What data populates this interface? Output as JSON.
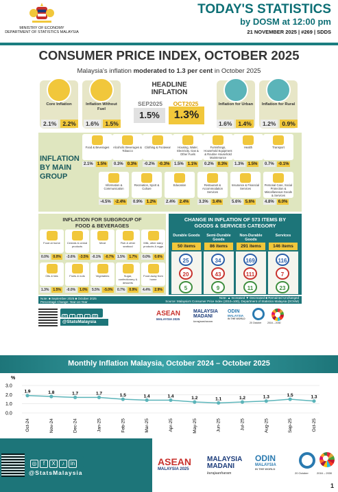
{
  "header": {
    "org_line1": "MINISTRY OF ECONOMY",
    "org_line2": "DEPARTMENT OF STATISTICS MALAYSIA",
    "title": "TODAY'S STATISTICS",
    "subtitle": "by DOSM at 12:00 pm",
    "meta": "21 NOVEMBER 2025 | #269 | SDDS"
  },
  "main_title": "CONSUMER PRICE INDEX, OCTOBER 2025",
  "subtitle_pre": "Malaysia's inflation ",
  "subtitle_mid": "moderated to 1.3 per cent",
  "subtitle_post": " in October 2025",
  "indicators": [
    {
      "label": "Core Inflation",
      "sep": "2.1%",
      "oct": "2.2%"
    },
    {
      "label": "Inflation Without Fuel",
      "sep": "1.6%",
      "oct": "1.5%"
    },
    {
      "label": "Inflation for Urban",
      "sep": "1.6%",
      "oct": "1.4%"
    },
    {
      "label": "Inflation for Rural",
      "sep": "1.2%",
      "oct": "0.9%"
    }
  ],
  "headline": {
    "title1": "HEADLINE",
    "title2": "INFLATION",
    "sep_label": "SEP2025",
    "oct_label": "OCT2025",
    "sep": "1.5%",
    "oct": "1.3%"
  },
  "groups_label1": "INFLATION",
  "groups_label2": "BY MAIN",
  "groups_label3": "GROUP",
  "groups": [
    {
      "name": "Food & Beverages",
      "sep": "2.1%",
      "oct": "1.5%"
    },
    {
      "name": "Alcoholic Beverages & Tobacco",
      "sep": "0.3%",
      "oct": "0.3%"
    },
    {
      "name": "Clothing & Footwear",
      "sep": "-0.2%",
      "oct": "-0.3%"
    },
    {
      "name": "Housing, Water, Electricity, Gas & Other Fuels",
      "sep": "1.5%",
      "oct": "1.1%"
    },
    {
      "name": "Furnishings, Household Equipment & Routine Household Maintenance",
      "sep": "0.2%",
      "oct": "0.3%"
    },
    {
      "name": "Health",
      "sep": "1.3%",
      "oct": "1.5%"
    },
    {
      "name": "Transport",
      "sep": "0.7%",
      "oct": "-0.1%"
    },
    {
      "name": "Information & Communication",
      "sep": "-4.5%",
      "oct": "-2.4%"
    },
    {
      "name": "Recreation, Sport & Culture",
      "sep": "0.9%",
      "oct": "1.2%"
    },
    {
      "name": "Education",
      "sep": "2.4%",
      "oct": "2.4%"
    },
    {
      "name": "Restaurant & Accommodation Services",
      "sep": "3.3%",
      "oct": "3.4%"
    },
    {
      "name": "Insurance & Financial Services",
      "sep": "5.6%",
      "oct": "5.6%"
    },
    {
      "name": "Personal Care, Social Protection & Miscellaneous Goods & Services",
      "sep": "4.8%",
      "oct": "6.0%"
    }
  ],
  "fb": {
    "title1": "INFLATION FOR SUBGROUP OF",
    "title2": "FOOD & BEVERAGES",
    "items": [
      {
        "name": "Food at home",
        "sep": "0.0%",
        "oct": "0.0%"
      },
      {
        "name": "Cereals & cereal products",
        "sep": "-3.6%",
        "oct": "-3.5%"
      },
      {
        "name": "Meat",
        "sep": "-0.1%",
        "oct": "-0.7%"
      },
      {
        "name": "Fish & other seafood",
        "sep": "1.5%",
        "oct": "1.7%"
      },
      {
        "name": "Milk, other dairy products & eggs",
        "sep": "0.0%",
        "oct": "0.6%"
      },
      {
        "name": "Oils & fats",
        "sep": "1.3%",
        "oct": "1.5%"
      },
      {
        "name": "Fruits & nuts",
        "sep": "-0.0%",
        "oct": "1.0%"
      },
      {
        "name": "Vegetables",
        "sep": "5.5%",
        "oct": "-5.0%"
      },
      {
        "name": "Sugar, confectionery & desserts",
        "sep": "0.7%",
        "oct": "0.9%"
      },
      {
        "name": "Food away from home",
        "sep": "4.4%",
        "oct": "2.9%"
      }
    ]
  },
  "change": {
    "title1": "CHANGE IN INFLATION OF 573 ITEMS BY",
    "title2": "GOODS & SERVICES CATEGORY",
    "cols": [
      {
        "head": "Durable Goods",
        "n": "50 items",
        "inc": "25",
        "dec": "20",
        "unc": "5"
      },
      {
        "head": "Semi-Durable Goods",
        "n": "86 items",
        "inc": "34",
        "dec": "43",
        "unc": "9"
      },
      {
        "head": "Non-Durable Goods",
        "n": "291 items",
        "inc": "169",
        "dec": "111",
        "unc": "11"
      },
      {
        "head": "Services",
        "n": "146 items",
        "inc": "116",
        "dec": "7",
        "unc": "23"
      }
    ]
  },
  "notes": {
    "line1": "Note: ■ September 2025  ■ October 2025",
    "line2": "Percentage Change: Year-on-Year",
    "legend": "Note: ▲ Increased  ▼ Decreased  ■ Remained Unchanged",
    "source": "Source: Malaysia's Consumer Price Index (2010=100), Department of Statistics Malaysia (DOSM)"
  },
  "social": {
    "handle": "@StatsMalaysia",
    "handle2": "@StatsMalaysia",
    "icons": [
      "◎",
      "f",
      "X",
      "♪",
      "in"
    ]
  },
  "logos": {
    "asean": "ASEAN",
    "asean_sub": "MALAYSIA 2025",
    "mm1": "MALAYSIA",
    "mm2": "MADANI",
    "mm3": "kerajaanharam",
    "odin": "ODIN",
    "odin_sub": "MALAYSIA",
    "odin_note": "IN THE WORLD",
    "date1": "20 October",
    "date2": "2016 – 2030"
  },
  "chart_band": "Monthly Inflation Malaysia, October 2024 – October 2025",
  "chart_data": {
    "type": "line",
    "title": "Monthly Inflation Malaysia, October 2024 – October 2025",
    "ylabel": "%",
    "ylim": [
      0.0,
      3.0
    ],
    "yticks": [
      "3.0",
      "2.0",
      "1.0",
      "0.0"
    ],
    "categories": [
      "Oct-24",
      "Nov-24",
      "Dec-24",
      "Jan-25",
      "Feb-25",
      "Mar-25",
      "Apr-25",
      "May-25",
      "Jun-25",
      "Jul-25",
      "Aug-25",
      "Sep-25",
      "Oct-25"
    ],
    "values": [
      1.9,
      1.8,
      1.7,
      1.7,
      1.5,
      1.4,
      1.4,
      1.2,
      1.1,
      1.2,
      1.3,
      1.5,
      1.3
    ],
    "labels": [
      "1.9",
      "1.8",
      "1.7",
      "1.7",
      "1.5",
      "1.4",
      "1.4",
      "1.2",
      "1.1",
      "1.2",
      "1.3",
      "1.5",
      "1.3"
    ],
    "color": "#5bb4b9"
  },
  "page": "1"
}
